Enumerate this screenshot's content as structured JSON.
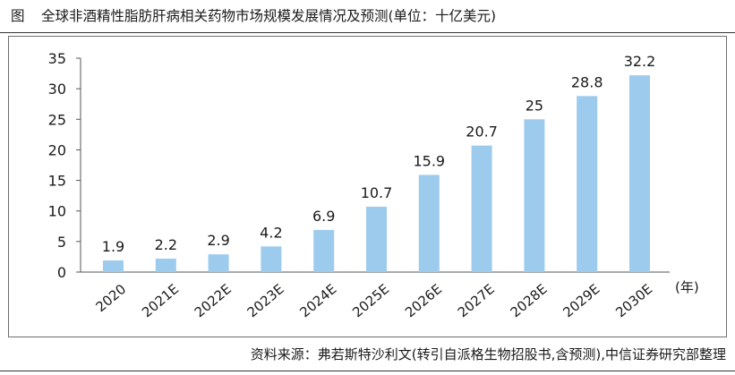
{
  "figure_label": "图",
  "title": "全球非酒精性脂肪肝病相关药物市场规模发展情况及预测(单位：十亿美元)",
  "source": "资料来源：弗若斯特沙利文(转引自派格生物招股书,含预测),中信证券研究部整理",
  "colors": {
    "bar": "#9ccbee",
    "axis": "#555555",
    "text": "#1a1a1a"
  },
  "chart_data": {
    "type": "bar",
    "title": "全球非酒精性脂肪肝病相关药物市场规模发展情况及预测(单位：十亿美元)",
    "xlabel": "(年)",
    "ylabel": "",
    "unit": "十亿美元",
    "categories": [
      "2020",
      "2021E",
      "2022E",
      "2023E",
      "2024E",
      "2025E",
      "2026E",
      "2027E",
      "2028E",
      "2029E",
      "2030E"
    ],
    "values": [
      1.9,
      2.2,
      2.9,
      4.2,
      6.9,
      10.7,
      15.9,
      20.7,
      25,
      28.8,
      32.2
    ],
    "data_labels": [
      "1.9",
      "2.2",
      "2.9",
      "4.2",
      "6.9",
      "10.7",
      "15.9",
      "20.7",
      "25",
      "28.8",
      "32.2"
    ],
    "ylim": [
      0,
      35
    ],
    "yticks": [
      0,
      5,
      10,
      15,
      20,
      25,
      30,
      35
    ],
    "grid": false,
    "legend": "none"
  }
}
